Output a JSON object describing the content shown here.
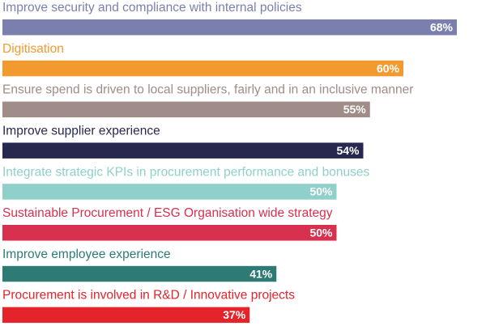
{
  "chart_data": {
    "type": "bar",
    "orientation": "horizontal",
    "categories": [
      "Improve security and compliance with internal policies",
      "Digitisation",
      "Ensure spend is driven to local suppliers, fairly and in an inclusive manner",
      "Improve supplier experience",
      "Integrate strategic KPIs in procurement performance and bonuses",
      "Sustainable Procurement / ESG Organisation wide strategy",
      "Improve employee experience",
      "Procurement is involved in R&D / Innovative projects"
    ],
    "values": [
      68,
      60,
      55,
      54,
      50,
      50,
      41,
      37
    ],
    "value_labels": [
      "68%",
      "60%",
      "55%",
      "54%",
      "50%",
      "50%",
      "41%",
      "37%"
    ],
    "colors": [
      "#7b7fae",
      "#f29a2e",
      "#a08c88",
      "#27284f",
      "#8fd0cb",
      "#d8304f",
      "#2e7b76",
      "#e4232b"
    ]
  }
}
